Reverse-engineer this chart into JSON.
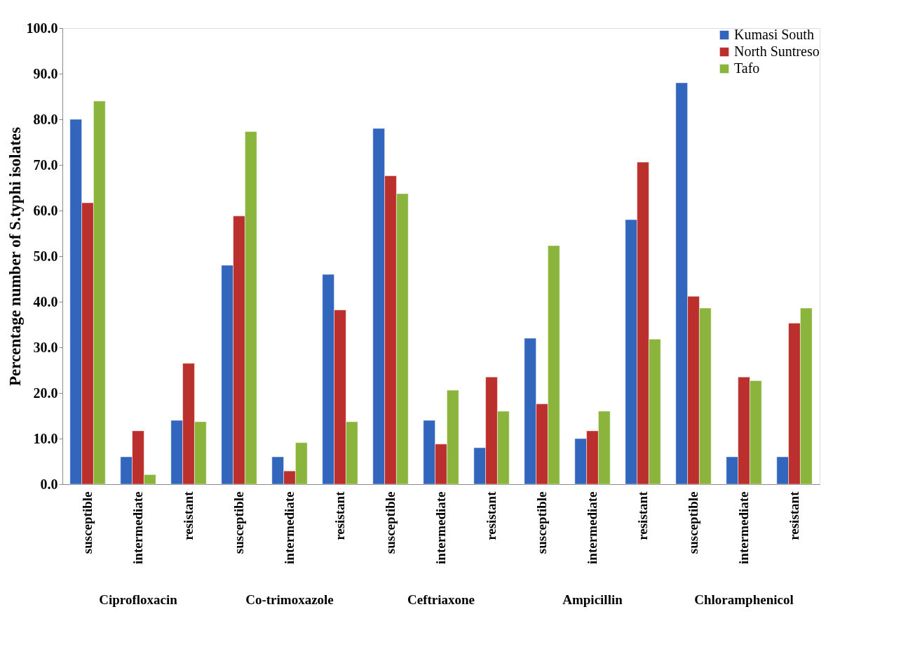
{
  "chart_data": {
    "type": "bar",
    "ylabel": "Percentage number of S.typhi isolates",
    "categories": [
      "susceptible",
      "intermediate",
      "resistant",
      "susceptible",
      "intermediate",
      "resistant",
      "susceptible",
      "intermediate",
      "resistant",
      "susceptible",
      "intermediate",
      "resistant",
      "susceptible",
      "intermediate",
      "resistant"
    ],
    "annotations": [
      "Ciprofloxacin",
      "Co-trimoxazole",
      "Ceftriaxone",
      "Ampicillin",
      "Chloramphenicol"
    ],
    "series": [
      {
        "name": "Kumasi South",
        "color": "#3266bd",
        "values": [
          80,
          6,
          14,
          48,
          6,
          46,
          78,
          14,
          8,
          32,
          10,
          58,
          88,
          6,
          6
        ]
      },
      {
        "name": "North Suntreso",
        "color": "#bb2f2c",
        "values": [
          61.7,
          11.7,
          26.5,
          58.8,
          2.9,
          38.2,
          67.6,
          8.8,
          23.5,
          17.6,
          11.7,
          70.6,
          41.2,
          23.5,
          35.3
        ]
      },
      {
        "name": "Tafo",
        "color": "#8ab43c",
        "values": [
          84,
          2.1,
          13.7,
          77.3,
          9.1,
          13.7,
          63.7,
          20.6,
          16,
          52.3,
          16,
          31.8,
          38.6,
          22.7,
          38.6
        ]
      }
    ],
    "ylim": [
      0,
      100
    ],
    "yticks": [
      {
        "value": 0,
        "label": "0.0"
      },
      {
        "value": 10,
        "label": "10.0"
      },
      {
        "value": 20,
        "label": "20.0"
      },
      {
        "value": 30,
        "label": "30.0"
      },
      {
        "value": 40,
        "label": "40.0"
      },
      {
        "value": 50,
        "label": "50.0"
      },
      {
        "value": 60,
        "label": "60.0"
      },
      {
        "value": 70,
        "label": "70.0"
      },
      {
        "value": 80,
        "label": "80.0"
      },
      {
        "value": 90,
        "label": "90.0"
      },
      {
        "value": 100,
        "label": "100.0"
      }
    ],
    "grid": false,
    "legend": "top right"
  }
}
